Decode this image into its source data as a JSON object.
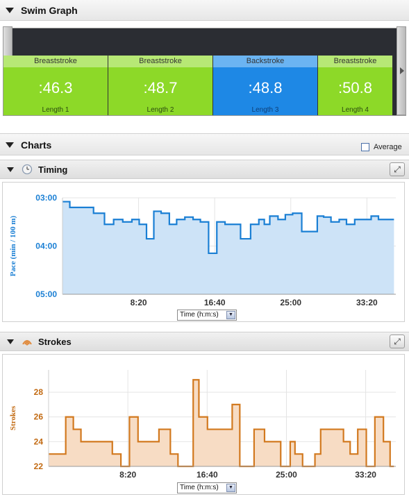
{
  "swim_graph": {
    "title": "Swim Graph",
    "tiles": [
      {
        "stroke": "Breaststroke",
        "time": ":46.3",
        "length": "Length 1",
        "color": "#8dd928",
        "head_color": "#b7e875"
      },
      {
        "stroke": "Breaststroke",
        "time": ":48.7",
        "length": "Length 2",
        "color": "#8dd928",
        "head_color": "#b7e875"
      },
      {
        "stroke": "Backstroke",
        "time": ":48.8",
        "length": "Length 3",
        "color": "#1e88e5",
        "head_color": "#6bb4f2"
      },
      {
        "stroke": "Breaststroke",
        "time": ":50.8",
        "length": "Length 4",
        "color": "#8dd928",
        "head_color": "#b7e875"
      }
    ]
  },
  "charts": {
    "title": "Charts",
    "average_label": "Average",
    "average_checked": false
  },
  "timing": {
    "title": "Timing",
    "axis_select": "Time (h:m:s)",
    "colors": {
      "line": "#1a7fd4",
      "fill": "#cde3f7",
      "axis_text": "#1a7fd4"
    }
  },
  "strokes": {
    "title": "Strokes",
    "axis_select": "Time (h:m:s)",
    "colors": {
      "line": "#d2791f",
      "fill": "#f7dcc4",
      "axis_text": "#c26a12"
    }
  },
  "chart_data": [
    {
      "type": "area",
      "title": "Timing",
      "ylabel": "Pace (min / 100 m)",
      "xlabel": "",
      "x_unit": "minutes",
      "x_tick_labels": [
        "8:20",
        "16:40",
        "25:00",
        "33:20"
      ],
      "x_ticks": [
        8.333,
        16.667,
        25,
        33.333
      ],
      "y_unit": "pace",
      "y_tick_labels": [
        "03:00",
        "04:00",
        "05:00"
      ],
      "y_ticks": [
        3,
        4,
        5
      ],
      "ylim": [
        5,
        3
      ],
      "xlim": [
        0,
        36.5
      ],
      "x": [
        0,
        0.8,
        1.6,
        3.4,
        4.6,
        5.6,
        6.6,
        7.6,
        8.4,
        9.2,
        10,
        10.8,
        11.7,
        12.5,
        13.4,
        14.3,
        15.1,
        16,
        16.9,
        17.8,
        19.5,
        20.6,
        21.5,
        22.1,
        22.7,
        23.6,
        24.4,
        25.2,
        26.2,
        27.9,
        28.6,
        29.4,
        30.3,
        31.1,
        32,
        33.8,
        34.6,
        35.9
      ],
      "values": [
        3.08,
        3.2,
        3.2,
        3.32,
        3.55,
        3.45,
        3.5,
        3.45,
        3.55,
        3.85,
        3.28,
        3.32,
        3.55,
        3.45,
        3.4,
        3.45,
        3.5,
        4.15,
        3.5,
        3.55,
        3.85,
        3.55,
        3.45,
        3.55,
        3.38,
        3.45,
        3.35,
        3.32,
        3.7,
        3.38,
        3.4,
        3.5,
        3.45,
        3.55,
        3.45,
        3.38,
        3.45,
        3.45
      ]
    },
    {
      "type": "area",
      "title": "Strokes",
      "ylabel": "Strokes",
      "xlabel": "",
      "x_unit": "minutes",
      "x_tick_labels": [
        "8:20",
        "16:40",
        "25:00",
        "33:20"
      ],
      "x_ticks": [
        8.333,
        16.667,
        25,
        33.333
      ],
      "y_tick_labels": [
        "22",
        "24",
        "26",
        "28"
      ],
      "y_ticks": [
        22,
        24,
        26,
        28
      ],
      "ylim": [
        22,
        29.8
      ],
      "xlim": [
        0,
        36.5
      ],
      "x": [
        0,
        1.8,
        2.6,
        3.4,
        4.0,
        6.7,
        7.6,
        8.5,
        9.4,
        10.4,
        11.6,
        12.8,
        13.6,
        15.2,
        15.8,
        16.7,
        17.5,
        19.3,
        20.1,
        21.6,
        22.7,
        23.5,
        24.4,
        25.4,
        25.9,
        26.7,
        28.0,
        28.6,
        30.3,
        31.0,
        31.7,
        32.5,
        33.4,
        34.3,
        35.2,
        35.9
      ],
      "values": [
        23,
        26,
        25,
        24,
        24,
        23,
        22,
        26,
        24,
        24,
        25,
        23,
        22,
        29,
        26,
        25,
        25,
        27,
        22,
        25,
        24,
        24,
        22,
        24,
        23,
        22,
        23,
        25,
        25,
        24,
        23,
        25,
        22,
        26,
        24,
        22
      ]
    }
  ]
}
